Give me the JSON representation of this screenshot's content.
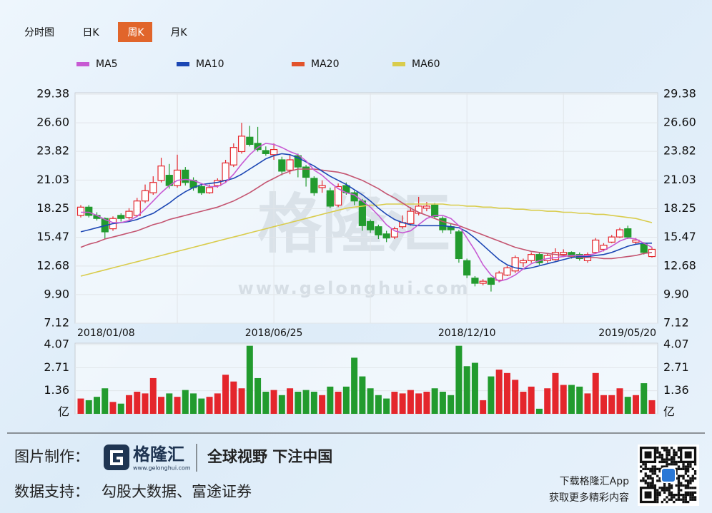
{
  "tabs": [
    "分时图",
    "日K",
    "周K",
    "月K"
  ],
  "active_tab": 2,
  "watermark": {
    "text": "格隆汇",
    "url": "www.gelonghui.com"
  },
  "chart_data": [
    {
      "type": "candlestick",
      "up_color": "#e4262c",
      "down_color": "#229b2e",
      "grid": true,
      "categories": [
        "2018/01/08",
        null,
        null,
        null,
        null,
        null,
        null,
        null,
        null,
        null,
        null,
        null,
        null,
        null,
        null,
        null,
        null,
        null,
        null,
        null,
        null,
        null,
        null,
        null,
        "2018/06/25",
        null,
        null,
        null,
        null,
        null,
        null,
        null,
        null,
        null,
        null,
        null,
        null,
        null,
        null,
        null,
        null,
        null,
        null,
        null,
        null,
        null,
        null,
        null,
        "2018/12/10",
        null,
        null,
        null,
        null,
        null,
        null,
        null,
        null,
        null,
        null,
        null,
        null,
        null,
        null,
        null,
        null,
        null,
        null,
        null,
        null,
        null,
        null,
        "2019/05/20"
      ],
      "open": [
        17.6,
        18.4,
        17.6,
        17.3,
        16.3,
        17.6,
        17.4,
        17.6,
        19.0,
        19.8,
        21.0,
        21.5,
        20.5,
        22.0,
        21.0,
        20.4,
        19.8,
        20.5,
        21.0,
        22.5,
        23.8,
        25.2,
        24.6,
        23.9,
        23.5,
        23.0,
        22.0,
        23.4,
        22.3,
        21.2,
        20.3,
        20.0,
        18.6,
        20.5,
        19.8,
        19.0,
        17.0,
        16.5,
        15.8,
        15.5,
        16.5,
        16.8,
        17.8,
        18.3,
        18.6,
        17.3,
        16.5,
        16.0,
        13.2,
        11.5,
        11.0,
        11.5,
        11.3,
        11.8,
        12.2,
        13.0,
        13.2,
        13.8,
        13.2,
        13.3,
        13.8,
        14.0,
        13.8,
        13.2,
        14.0,
        14.3,
        15.0,
        15.5,
        16.3,
        15.0,
        14.8,
        13.6
      ],
      "high": [
        18.6,
        18.6,
        17.9,
        17.4,
        17.5,
        17.8,
        18.3,
        19.3,
        20.6,
        21.4,
        23.2,
        22.6,
        23.5,
        22.3,
        21.3,
        20.7,
        20.6,
        21.2,
        23.0,
        24.6,
        26.6,
        26.3,
        26.2,
        24.3,
        24.6,
        23.3,
        23.5,
        23.6,
        22.5,
        21.4,
        21.0,
        20.3,
        20.7,
        20.8,
        20.0,
        19.2,
        17.2,
        16.7,
        16.1,
        16.5,
        17.6,
        18.4,
        19.4,
        18.9,
        18.8,
        17.5,
        16.8,
        16.2,
        13.4,
        11.7,
        11.4,
        11.6,
        12.2,
        12.7,
        13.7,
        13.4,
        14.0,
        14.0,
        13.9,
        14.4,
        14.3,
        14.1,
        14.0,
        14.0,
        15.4,
        14.9,
        15.7,
        16.4,
        16.6,
        15.4,
        15.0,
        14.5
      ],
      "low": [
        17.4,
        17.4,
        17.1,
        15.3,
        16.1,
        17.0,
        17.2,
        17.5,
        18.8,
        19.6,
        20.8,
        20.2,
        20.3,
        20.5,
        20.0,
        19.6,
        19.7,
        20.3,
        20.8,
        22.3,
        23.6,
        24.3,
        23.8,
        23.4,
        23.0,
        21.5,
        21.6,
        21.3,
        20.4,
        19.5,
        19.8,
        18.3,
        18.4,
        19.6,
        18.6,
        16.1,
        15.9,
        15.3,
        15.0,
        15.3,
        16.3,
        16.6,
        17.6,
        18.0,
        17.3,
        15.9,
        15.8,
        13.0,
        11.5,
        10.7,
        10.8,
        10.2,
        11.1,
        11.7,
        12.0,
        12.6,
        13.0,
        12.8,
        13.0,
        13.2,
        13.6,
        13.4,
        13.2,
        13.0,
        13.9,
        14.1,
        14.9,
        15.4,
        15.3,
        14.8,
        13.8,
        13.5
      ],
      "close": [
        18.4,
        17.6,
        17.3,
        16.0,
        17.3,
        17.3,
        18.0,
        19.0,
        20.0,
        20.8,
        22.4,
        20.5,
        22.0,
        20.8,
        20.3,
        19.8,
        20.3,
        21.0,
        22.7,
        24.2,
        25.3,
        24.5,
        24.0,
        23.6,
        24.0,
        21.9,
        23.0,
        22.3,
        21.3,
        19.8,
        20.5,
        18.5,
        20.4,
        19.8,
        19.0,
        16.6,
        16.2,
        15.7,
        15.4,
        16.3,
        16.9,
        18.0,
        18.5,
        18.5,
        17.5,
        16.2,
        16.2,
        13.4,
        11.8,
        11.0,
        11.2,
        10.9,
        12.0,
        12.5,
        13.5,
        13.2,
        13.8,
        13.0,
        13.7,
        14.0,
        14.0,
        13.6,
        13.4,
        13.8,
        15.2,
        14.7,
        15.5,
        16.2,
        15.5,
        15.2,
        14.0,
        14.3
      ],
      "series": [
        {
          "name": "MA5",
          "color": "#c75ad3",
          "values": [
            17.9,
            17.9,
            17.6,
            17.2,
            16.9,
            16.9,
            17.1,
            17.5,
            18.2,
            19.0,
            19.8,
            20.5,
            21.0,
            21.1,
            21.0,
            20.7,
            20.4,
            20.4,
            20.8,
            21.6,
            22.6,
            23.5,
            24.2,
            24.6,
            24.5,
            24.2,
            23.8,
            23.5,
            22.9,
            22.0,
            21.5,
            20.8,
            20.2,
            19.8,
            19.6,
            19.0,
            18.4,
            17.6,
            16.7,
            16.1,
            15.9,
            16.1,
            16.7,
            17.3,
            17.6,
            17.6,
            17.3,
            16.6,
            15.4,
            14.2,
            12.8,
            11.8,
            11.2,
            11.4,
            11.8,
            12.4,
            12.9,
            13.2,
            13.4,
            13.5,
            13.6,
            13.7,
            13.7,
            13.7,
            13.9,
            14.2,
            14.6,
            15.1,
            15.4,
            15.3,
            14.9,
            14.5
          ]
        },
        {
          "name": "MA10",
          "color": "#1c47b4",
          "values": [
            16.0,
            16.2,
            16.4,
            16.6,
            16.8,
            16.9,
            17.0,
            17.2,
            17.5,
            17.8,
            18.3,
            18.8,
            19.4,
            19.9,
            20.3,
            20.6,
            20.7,
            20.8,
            21.0,
            21.2,
            21.6,
            22.1,
            22.6,
            23.1,
            23.4,
            23.6,
            23.5,
            23.2,
            22.8,
            22.4,
            21.9,
            21.4,
            21.0,
            20.6,
            20.1,
            19.6,
            19.0,
            18.3,
            17.7,
            17.2,
            16.9,
            16.7,
            16.6,
            16.6,
            16.6,
            16.6,
            16.5,
            16.4,
            16.0,
            15.4,
            14.7,
            14.0,
            13.3,
            12.8,
            12.5,
            12.4,
            12.5,
            12.7,
            12.9,
            13.1,
            13.3,
            13.5,
            13.6,
            13.6,
            13.7,
            13.8,
            14.0,
            14.3,
            14.6,
            14.8,
            14.9,
            14.9
          ]
        },
        {
          "name": "MA20",
          "color": "#e2532c",
          "line_color": "#c45470",
          "values": [
            14.5,
            14.8,
            15.0,
            15.3,
            15.5,
            15.7,
            15.9,
            16.1,
            16.4,
            16.7,
            16.9,
            17.2,
            17.4,
            17.6,
            17.8,
            18.0,
            18.2,
            18.4,
            18.7,
            19.0,
            19.4,
            19.8,
            20.3,
            20.8,
            21.2,
            21.6,
            21.9,
            22.1,
            22.1,
            22.1,
            22.0,
            21.9,
            21.8,
            21.6,
            21.3,
            21.0,
            20.6,
            20.2,
            19.7,
            19.3,
            18.8,
            18.3,
            17.9,
            17.6,
            17.3,
            17.0,
            16.8,
            16.6,
            16.3,
            16.0,
            15.7,
            15.4,
            15.1,
            14.8,
            14.5,
            14.3,
            14.1,
            14.0,
            13.9,
            13.8,
            13.7,
            13.6,
            13.5,
            13.5,
            13.5,
            13.4,
            13.4,
            13.5,
            13.6,
            13.7,
            13.9,
            14.0
          ]
        },
        {
          "name": "MA60",
          "color": "#d9cc4c",
          "values": [
            11.7,
            11.9,
            12.1,
            12.3,
            12.5,
            12.7,
            12.9,
            13.1,
            13.3,
            13.5,
            13.7,
            13.9,
            14.1,
            14.3,
            14.5,
            14.7,
            14.9,
            15.1,
            15.3,
            15.5,
            15.7,
            15.9,
            16.1,
            16.3,
            16.5,
            16.7,
            16.9,
            17.1,
            17.3,
            17.5,
            17.7,
            17.9,
            18.1,
            18.3,
            18.4,
            18.5,
            18.6,
            18.6,
            18.7,
            18.7,
            18.7,
            18.7,
            18.7,
            18.7,
            18.7,
            18.7,
            18.6,
            18.6,
            18.5,
            18.5,
            18.4,
            18.4,
            18.3,
            18.3,
            18.2,
            18.2,
            18.1,
            18.1,
            18.0,
            18.0,
            17.9,
            17.9,
            17.8,
            17.8,
            17.7,
            17.7,
            17.6,
            17.5,
            17.4,
            17.3,
            17.1,
            16.9
          ]
        }
      ],
      "ylim": [
        7.12,
        29.38
      ],
      "yticks": [
        29.38,
        {
          "value": 26.6,
          "label": "26.60"
        },
        23.82,
        21.03,
        18.25,
        15.47,
        12.68,
        {
          "value": 9.9,
          "label": "9.90"
        },
        7.12
      ]
    },
    {
      "type": "bar",
      "values": [
        0.9,
        0.8,
        1.0,
        1.5,
        0.7,
        0.6,
        1.1,
        1.3,
        1.2,
        2.1,
        1.0,
        1.2,
        1.0,
        1.4,
        1.2,
        0.9,
        1.0,
        1.2,
        2.3,
        1.9,
        1.5,
        4.0,
        2.1,
        1.3,
        1.4,
        1.1,
        1.5,
        1.3,
        1.4,
        1.3,
        1.1,
        1.6,
        1.3,
        1.6,
        3.3,
        2.2,
        1.5,
        1.1,
        0.9,
        1.3,
        1.2,
        1.4,
        1.2,
        1.3,
        1.5,
        1.3,
        1.1,
        4.0,
        2.8,
        3.0,
        0.8,
        2.2,
        2.6,
        2.4,
        2.0,
        1.3,
        1.6,
        0.3,
        1.5,
        2.4,
        1.7,
        1.7,
        1.6,
        1.2,
        2.4,
        1.1,
        1.1,
        1.5,
        1.0,
        1.1,
        1.8,
        0.8
      ],
      "ylim": [
        0,
        4.07
      ],
      "yticks": [
        4.07,
        2.71,
        1.36,
        {
          "value": 0,
          "label": "亿"
        }
      ]
    }
  ],
  "footer": {
    "made_by_label": "图片制作：",
    "logo_text": "格隆汇",
    "logo_url": "www.gelonghui.com",
    "slogan": "全球视野 下注中国",
    "data_label": "数据支持：",
    "data_sources": "勾股大数据、富途证券",
    "app_line1": "下载格隆汇App",
    "app_line2": "获取更多精彩内容"
  }
}
